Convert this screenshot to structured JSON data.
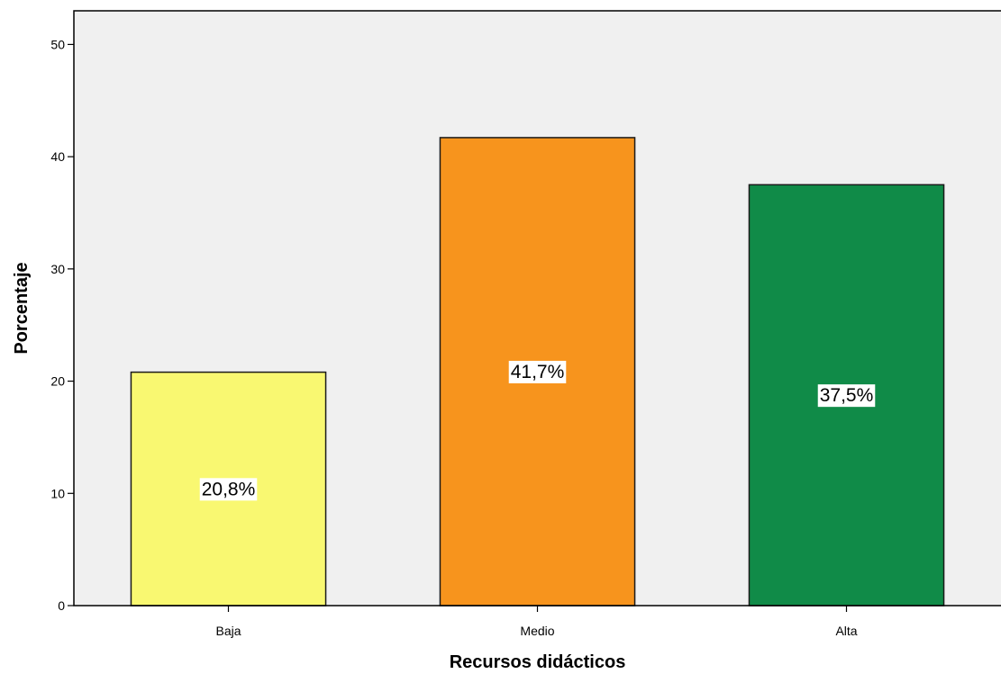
{
  "chart_data": {
    "type": "bar",
    "title": "",
    "xlabel": "Recursos didácticos",
    "ylabel": "Porcentaje",
    "categories": [
      "Baja",
      "Medio",
      "Alta"
    ],
    "values": [
      20.8,
      41.7,
      37.5
    ],
    "data_labels": [
      "20,8%",
      "41,7%",
      "37,5%"
    ],
    "colors": [
      "#f9f871",
      "#f7941d",
      "#108b48"
    ],
    "ylim": [
      0,
      53
    ],
    "yticks": [
      0,
      10,
      20,
      30,
      40,
      50
    ],
    "ytick_labels": [
      "0",
      "10",
      "20",
      "30",
      "40",
      "50"
    ],
    "background": "#f0f0f0",
    "grid": false,
    "legend": "none"
  }
}
